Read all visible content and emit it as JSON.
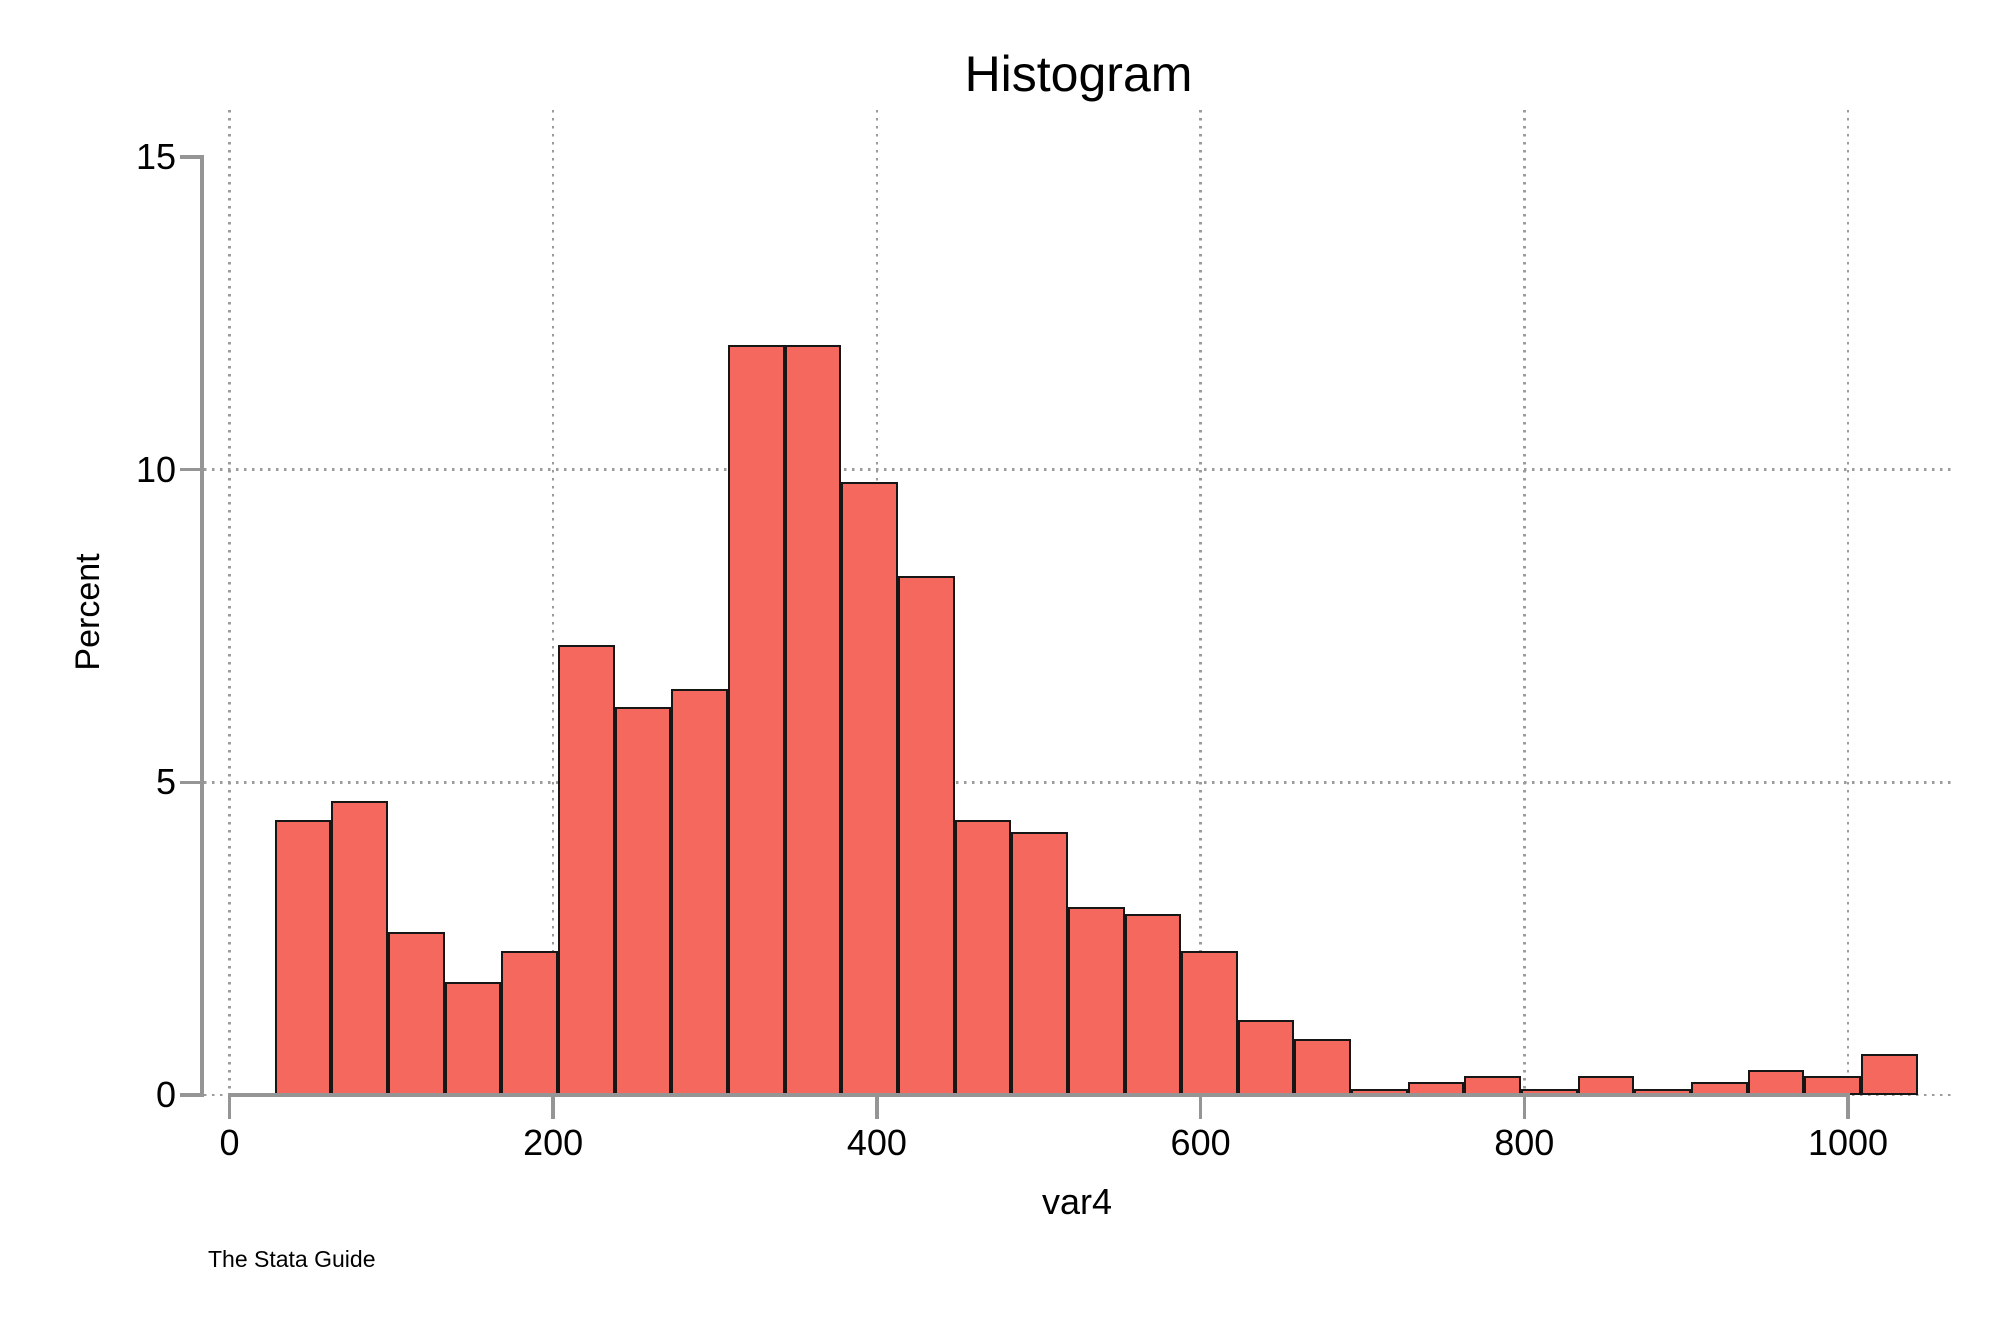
{
  "chart_data": {
    "type": "bar",
    "subtype": "histogram",
    "title": "Histogram",
    "xlabel": "var4",
    "ylabel": "Percent",
    "caption": "The Stata Guide",
    "xlim": [
      0,
      1066
    ],
    "ylim": [
      0,
      15
    ],
    "x_ticks": [
      0,
      200,
      400,
      600,
      800,
      1000
    ],
    "y_ticks": [
      0,
      5,
      10,
      15
    ],
    "y_gridlines_at": [
      5,
      10
    ],
    "grid_style": "dotted",
    "legend": "none",
    "bin_start": 28,
    "bin_width": 35,
    "values_unit": "percent",
    "values": [
      4.4,
      4.7,
      2.6,
      1.8,
      2.3,
      7.2,
      6.2,
      6.5,
      12.0,
      12.0,
      9.8,
      8.3,
      4.4,
      4.2,
      3.0,
      2.9,
      2.3,
      1.2,
      0.9,
      0.1,
      0.2,
      0.3,
      0.1,
      0.3,
      0.1,
      0.2,
      0.4,
      0.3,
      0.65
    ],
    "colors": {
      "bar_fill": "#F4685E",
      "bar_border": "#161616",
      "axis": "#959595",
      "grid": "#9B9B9B",
      "text": "#000000",
      "background": "#FFFFFF"
    }
  }
}
